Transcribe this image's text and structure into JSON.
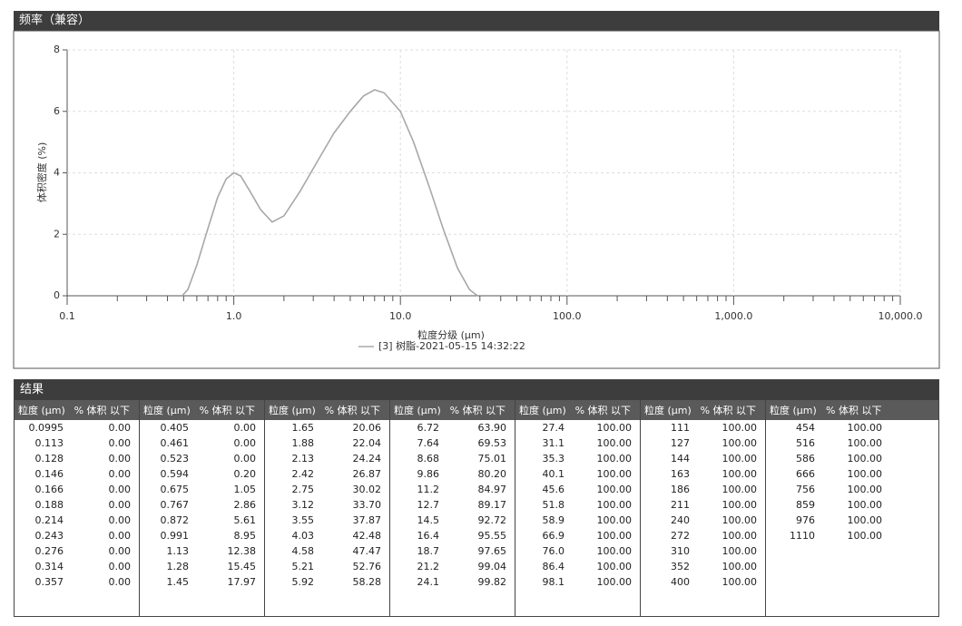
{
  "chart_panel": {
    "header": "频率（兼容）"
  },
  "chart_data": {
    "type": "line",
    "xlabel": "粒度分级 (μm)",
    "ylabel": "体积密度 (%)",
    "log_x": true,
    "grid": true,
    "xlim": [
      0.1,
      10000
    ],
    "xticks": [
      0.1,
      {
        "value": 1,
        "label": "1.0"
      },
      {
        "value": 10,
        "label": "10.0"
      },
      {
        "value": 100,
        "label": "100.0"
      },
      {
        "value": 1000,
        "label": "1,000.0"
      },
      {
        "value": 10000,
        "label": "10,000.0"
      }
    ],
    "ylim": [
      0,
      8
    ],
    "yticks": [
      0,
      2,
      4,
      6,
      8
    ],
    "series": [
      {
        "name": "[3] 树脂-2021-05-15 14:32:22",
        "color": "#a8a8a8",
        "x": [
          0.49,
          0.53,
          0.6,
          0.7,
          0.8,
          0.9,
          1.0,
          1.1,
          1.25,
          1.45,
          1.7,
          2.0,
          2.5,
          3.2,
          4.0,
          5.0,
          6.0,
          7.0,
          8.0,
          10.0,
          12.0,
          15.0,
          18.0,
          22.0,
          26.0,
          29.0
        ],
        "values": [
          0,
          0.2,
          1.0,
          2.2,
          3.2,
          3.8,
          4.0,
          3.9,
          3.4,
          2.8,
          2.4,
          2.6,
          3.4,
          4.4,
          5.3,
          6.0,
          6.5,
          6.7,
          6.6,
          6.0,
          5.0,
          3.5,
          2.2,
          0.9,
          0.2,
          0
        ]
      }
    ]
  },
  "table": {
    "header": "结果",
    "column_headers": [
      "粒度 (μm)",
      "% 体积 以下"
    ],
    "groups": [
      [
        [
          "0.0995",
          "0.00"
        ],
        [
          "0.113",
          "0.00"
        ],
        [
          "0.128",
          "0.00"
        ],
        [
          "0.146",
          "0.00"
        ],
        [
          "0.166",
          "0.00"
        ],
        [
          "0.188",
          "0.00"
        ],
        [
          "0.214",
          "0.00"
        ],
        [
          "0.243",
          "0.00"
        ],
        [
          "0.276",
          "0.00"
        ],
        [
          "0.314",
          "0.00"
        ],
        [
          "0.357",
          "0.00"
        ]
      ],
      [
        [
          "0.405",
          "0.00"
        ],
        [
          "0.461",
          "0.00"
        ],
        [
          "0.523",
          "0.00"
        ],
        [
          "0.594",
          "0.20"
        ],
        [
          "0.675",
          "1.05"
        ],
        [
          "0.767",
          "2.86"
        ],
        [
          "0.872",
          "5.61"
        ],
        [
          "0.991",
          "8.95"
        ],
        [
          "1.13",
          "12.38"
        ],
        [
          "1.28",
          "15.45"
        ],
        [
          "1.45",
          "17.97"
        ]
      ],
      [
        [
          "1.65",
          "20.06"
        ],
        [
          "1.88",
          "22.04"
        ],
        [
          "2.13",
          "24.24"
        ],
        [
          "2.42",
          "26.87"
        ],
        [
          "2.75",
          "30.02"
        ],
        [
          "3.12",
          "33.70"
        ],
        [
          "3.55",
          "37.87"
        ],
        [
          "4.03",
          "42.48"
        ],
        [
          "4.58",
          "47.47"
        ],
        [
          "5.21",
          "52.76"
        ],
        [
          "5.92",
          "58.28"
        ]
      ],
      [
        [
          "6.72",
          "63.90"
        ],
        [
          "7.64",
          "69.53"
        ],
        [
          "8.68",
          "75.01"
        ],
        [
          "9.86",
          "80.20"
        ],
        [
          "11.2",
          "84.97"
        ],
        [
          "12.7",
          "89.17"
        ],
        [
          "14.5",
          "92.72"
        ],
        [
          "16.4",
          "95.55"
        ],
        [
          "18.7",
          "97.65"
        ],
        [
          "21.2",
          "99.04"
        ],
        [
          "24.1",
          "99.82"
        ]
      ],
      [
        [
          "27.4",
          "100.00"
        ],
        [
          "31.1",
          "100.00"
        ],
        [
          "35.3",
          "100.00"
        ],
        [
          "40.1",
          "100.00"
        ],
        [
          "45.6",
          "100.00"
        ],
        [
          "51.8",
          "100.00"
        ],
        [
          "58.9",
          "100.00"
        ],
        [
          "66.9",
          "100.00"
        ],
        [
          "76.0",
          "100.00"
        ],
        [
          "86.4",
          "100.00"
        ],
        [
          "98.1",
          "100.00"
        ]
      ],
      [
        [
          "111",
          "100.00"
        ],
        [
          "127",
          "100.00"
        ],
        [
          "144",
          "100.00"
        ],
        [
          "163",
          "100.00"
        ],
        [
          "186",
          "100.00"
        ],
        [
          "211",
          "100.00"
        ],
        [
          "240",
          "100.00"
        ],
        [
          "272",
          "100.00"
        ],
        [
          "310",
          "100.00"
        ],
        [
          "352",
          "100.00"
        ],
        [
          "400",
          "100.00"
        ]
      ],
      [
        [
          "454",
          "100.00"
        ],
        [
          "516",
          "100.00"
        ],
        [
          "586",
          "100.00"
        ],
        [
          "666",
          "100.00"
        ],
        [
          "756",
          "100.00"
        ],
        [
          "859",
          "100.00"
        ],
        [
          "976",
          "100.00"
        ],
        [
          "1110",
          "100.00"
        ]
      ]
    ]
  }
}
